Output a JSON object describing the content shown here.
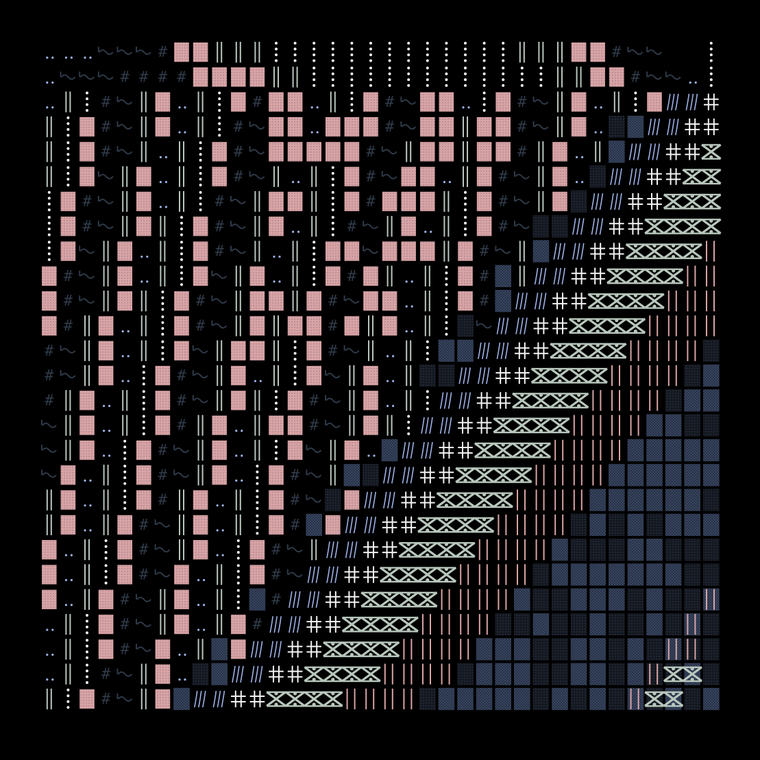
{
  "artwork": {
    "background": "#000000",
    "palette": {
      "pink": "#d9a3a5",
      "sage": "#b9c7bd",
      "white": "#f4f4f4",
      "lilac": "#9eb2e6",
      "slate": "#2f3a48",
      "navy": "#273247",
      "navy_light": "#3a4763",
      "dark": "#141820"
    },
    "glyphs": [
      "block",
      "bars",
      "dots",
      "tilde",
      "hash",
      "slash",
      "cross",
      "x-motif",
      "pipes",
      "dither"
    ]
  }
}
